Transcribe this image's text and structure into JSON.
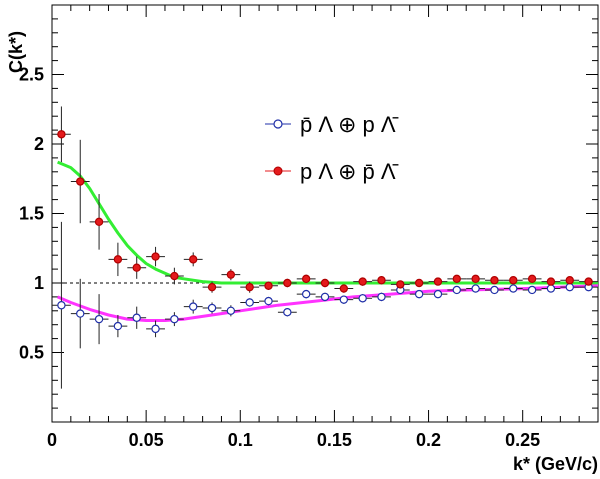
{
  "chart_data": {
    "type": "scatter",
    "xlabel": "k* (GeV/c)",
    "ylabel": "C(k*)",
    "xlim": [
      0,
      0.29
    ],
    "ylim": [
      0,
      3.0
    ],
    "x_ticks": [
      0,
      0.05,
      0.1,
      0.15,
      0.2,
      0.25
    ],
    "x_tick_labels": [
      "0",
      "0.05",
      "0.1",
      "0.15",
      "0.2",
      "0.25"
    ],
    "y_ticks": [
      0.5,
      1,
      1.5,
      2,
      2.5
    ],
    "y_tick_labels": [
      "0.5",
      "1",
      "1.5",
      "2",
      "2.5"
    ],
    "reference_line": {
      "y": 1,
      "style": "dashed"
    },
    "legend_placement": "upper-right",
    "colors": {
      "antiparticle_pair_markers": "#1f2fa8",
      "particle_pair_markers": "#e41a1c",
      "antiparticle_pair_fit": "#ff33ff",
      "particle_pair_fit": "#33ee33"
    },
    "series": [
      {
        "name": "p̄ Λ ⊕ p Λ̄",
        "marker": "open-circle",
        "color": "#1f2fa8",
        "x": [
          0.005,
          0.015,
          0.025,
          0.035,
          0.045,
          0.055,
          0.065,
          0.075,
          0.085,
          0.095,
          0.105,
          0.115,
          0.125,
          0.135,
          0.145,
          0.155,
          0.165,
          0.175,
          0.185,
          0.195,
          0.205,
          0.215,
          0.225,
          0.235,
          0.245,
          0.255,
          0.265,
          0.275,
          0.285
        ],
        "y": [
          0.84,
          0.78,
          0.74,
          0.69,
          0.75,
          0.67,
          0.74,
          0.83,
          0.82,
          0.8,
          0.86,
          0.87,
          0.79,
          0.92,
          0.9,
          0.88,
          0.89,
          0.9,
          0.95,
          0.92,
          0.92,
          0.95,
          0.96,
          0.95,
          0.96,
          0.95,
          0.96,
          0.97,
          0.97
        ],
        "yerr": [
          0.6,
          0.25,
          0.18,
          0.08,
          0.08,
          0.06,
          0.05,
          0.05,
          0.04,
          0.04,
          0.03,
          0.03,
          0.03,
          0.03,
          0.03,
          0.03,
          0.03,
          0.03,
          0.02,
          0.02,
          0.02,
          0.02,
          0.02,
          0.02,
          0.02,
          0.02,
          0.02,
          0.02,
          0.02
        ]
      },
      {
        "name": "p Λ ⊕ p̄ Λ̄",
        "marker": "filled-circle",
        "color": "#e41a1c",
        "x": [
          0.005,
          0.015,
          0.025,
          0.035,
          0.045,
          0.055,
          0.065,
          0.075,
          0.085,
          0.095,
          0.105,
          0.115,
          0.125,
          0.135,
          0.145,
          0.155,
          0.165,
          0.175,
          0.185,
          0.195,
          0.205,
          0.215,
          0.225,
          0.235,
          0.245,
          0.255,
          0.265,
          0.275,
          0.285
        ],
        "y": [
          2.07,
          1.73,
          1.44,
          1.17,
          1.11,
          1.19,
          1.05,
          1.17,
          0.97,
          1.06,
          0.97,
          0.98,
          1.0,
          1.03,
          1.0,
          0.96,
          1.01,
          1.02,
          0.99,
          1.0,
          1.01,
          1.03,
          1.03,
          1.02,
          1.02,
          1.03,
          1.01,
          1.02,
          1.01
        ],
        "yerr": [
          0.2,
          0.3,
          0.2,
          0.12,
          0.08,
          0.07,
          0.06,
          0.05,
          0.04,
          0.04,
          0.04,
          0.03,
          0.03,
          0.03,
          0.03,
          0.03,
          0.03,
          0.03,
          0.02,
          0.02,
          0.02,
          0.02,
          0.02,
          0.02,
          0.02,
          0.02,
          0.02,
          0.02,
          0.02
        ]
      }
    ],
    "fits": [
      {
        "color": "#33ee33",
        "x": [
          0.003,
          0.01,
          0.015,
          0.02,
          0.025,
          0.03,
          0.035,
          0.04,
          0.045,
          0.05,
          0.055,
          0.06,
          0.065,
          0.07,
          0.08,
          0.09,
          0.1,
          0.15,
          0.2,
          0.25,
          0.29
        ],
        "y": [
          1.87,
          1.83,
          1.77,
          1.68,
          1.57,
          1.46,
          1.36,
          1.27,
          1.2,
          1.14,
          1.1,
          1.07,
          1.04,
          1.03,
          1.01,
          1.0,
          1.0,
          1.0,
          1.0,
          1.0,
          1.0
        ]
      },
      {
        "color": "#ff33ff",
        "x": [
          0.003,
          0.01,
          0.02,
          0.03,
          0.04,
          0.05,
          0.06,
          0.07,
          0.08,
          0.09,
          0.1,
          0.11,
          0.12,
          0.14,
          0.16,
          0.18,
          0.2,
          0.22,
          0.25,
          0.29
        ],
        "y": [
          0.9,
          0.86,
          0.81,
          0.77,
          0.74,
          0.73,
          0.73,
          0.74,
          0.76,
          0.78,
          0.8,
          0.82,
          0.84,
          0.87,
          0.9,
          0.92,
          0.94,
          0.95,
          0.96,
          0.98
        ]
      }
    ]
  }
}
